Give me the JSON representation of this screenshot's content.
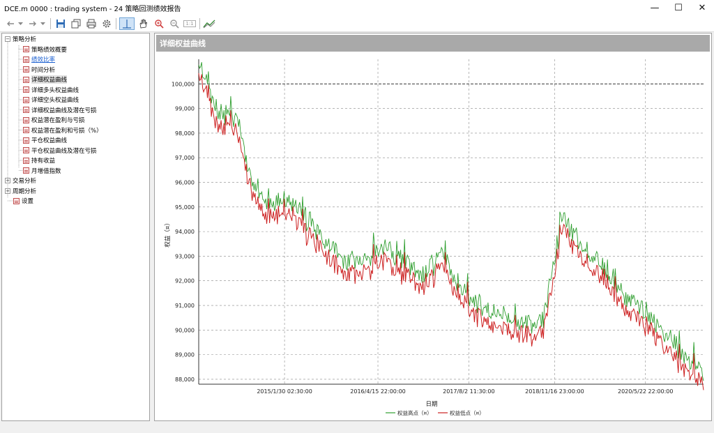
{
  "window": {
    "title": "DCE.m 0000 : trading system - 24 策略回测绩效报告",
    "minimize": "—",
    "maximize": "☐",
    "close": "✕"
  },
  "toolbar": {
    "icons": [
      "back-icon",
      "dropdown-icon",
      "forward-icon",
      "dropdown-icon",
      "save-icon",
      "copy-icon",
      "print-icon",
      "settings-icon",
      "crosshair-icon",
      "hand-icon",
      "zoom-in-icon",
      "zoom-out-icon",
      "zoom-reset-icon",
      "chart-style-icon"
    ],
    "zoom_reset_label": "1:1"
  },
  "sidebar": {
    "groups": [
      {
        "label": "策略分析",
        "expanded": true,
        "items": [
          {
            "label": "策略绩效概要"
          },
          {
            "label": "绩效比率",
            "link": true
          },
          {
            "label": "时间分析"
          },
          {
            "label": "详细权益曲线",
            "selected": true
          },
          {
            "label": "详细多头权益曲线"
          },
          {
            "label": "详细空头权益曲线"
          },
          {
            "label": "详细权益曲线及潜在亏损"
          },
          {
            "label": "权益潜在盈利与亏损"
          },
          {
            "label": "权益潜在盈利和亏损（%）"
          },
          {
            "label": "平仓权益曲线"
          },
          {
            "label": "平仓权益曲线及潜在亏损"
          },
          {
            "label": "持有收益"
          },
          {
            "label": "月增值指数"
          }
        ]
      },
      {
        "label": "交易分析",
        "expanded": false
      },
      {
        "label": "周期分析",
        "expanded": false
      }
    ],
    "settings_label": "设置"
  },
  "panel": {
    "title": "详细权益曲线"
  },
  "chart_data": {
    "type": "line",
    "title": "详细权益曲线",
    "xlabel": "日期",
    "ylabel": "权益（¤）",
    "ylim": [
      87800,
      101000
    ],
    "yticks": [
      88000,
      89000,
      90000,
      91000,
      92000,
      93000,
      94000,
      95000,
      96000,
      97000,
      98000,
      99000,
      100000
    ],
    "ytick_labels": [
      "88,000",
      "89,000",
      "90,000",
      "91,000",
      "92,000",
      "93,000",
      "94,000",
      "95,000",
      "96,000",
      "97,000",
      "98,000",
      "99,000",
      "100,000"
    ],
    "xtick_labels": [
      "2015/1/30 02:30:00",
      "2016/4/15 22:00:00",
      "2017/8/2 11:30:00",
      "2018/11/16 23:00:00",
      "2020/5/22 22:00:00"
    ],
    "reference_line": 100000,
    "grid": true,
    "legend_position": "bottom",
    "series": [
      {
        "name": "权益高点（¤）",
        "color": "#2e9e2e"
      },
      {
        "name": "权益低点（¤）",
        "color": "#cc1f1f"
      }
    ],
    "x_index": [
      0,
      2,
      4,
      6,
      8,
      10,
      12,
      14,
      17,
      20,
      24,
      28,
      32,
      36,
      40,
      44,
      48,
      52,
      56,
      60,
      64,
      68,
      72,
      76,
      80,
      84,
      88,
      92,
      96,
      100
    ],
    "values": [
      100500,
      99500,
      98200,
      98800,
      97800,
      96000,
      95200,
      94700,
      95000,
      94500,
      93500,
      92600,
      92200,
      93000,
      92500,
      91800,
      92700,
      91400,
      90500,
      90200,
      90000,
      89800,
      94200,
      93000,
      92300,
      91000,
      90400,
      89500,
      88600,
      87900
    ]
  }
}
